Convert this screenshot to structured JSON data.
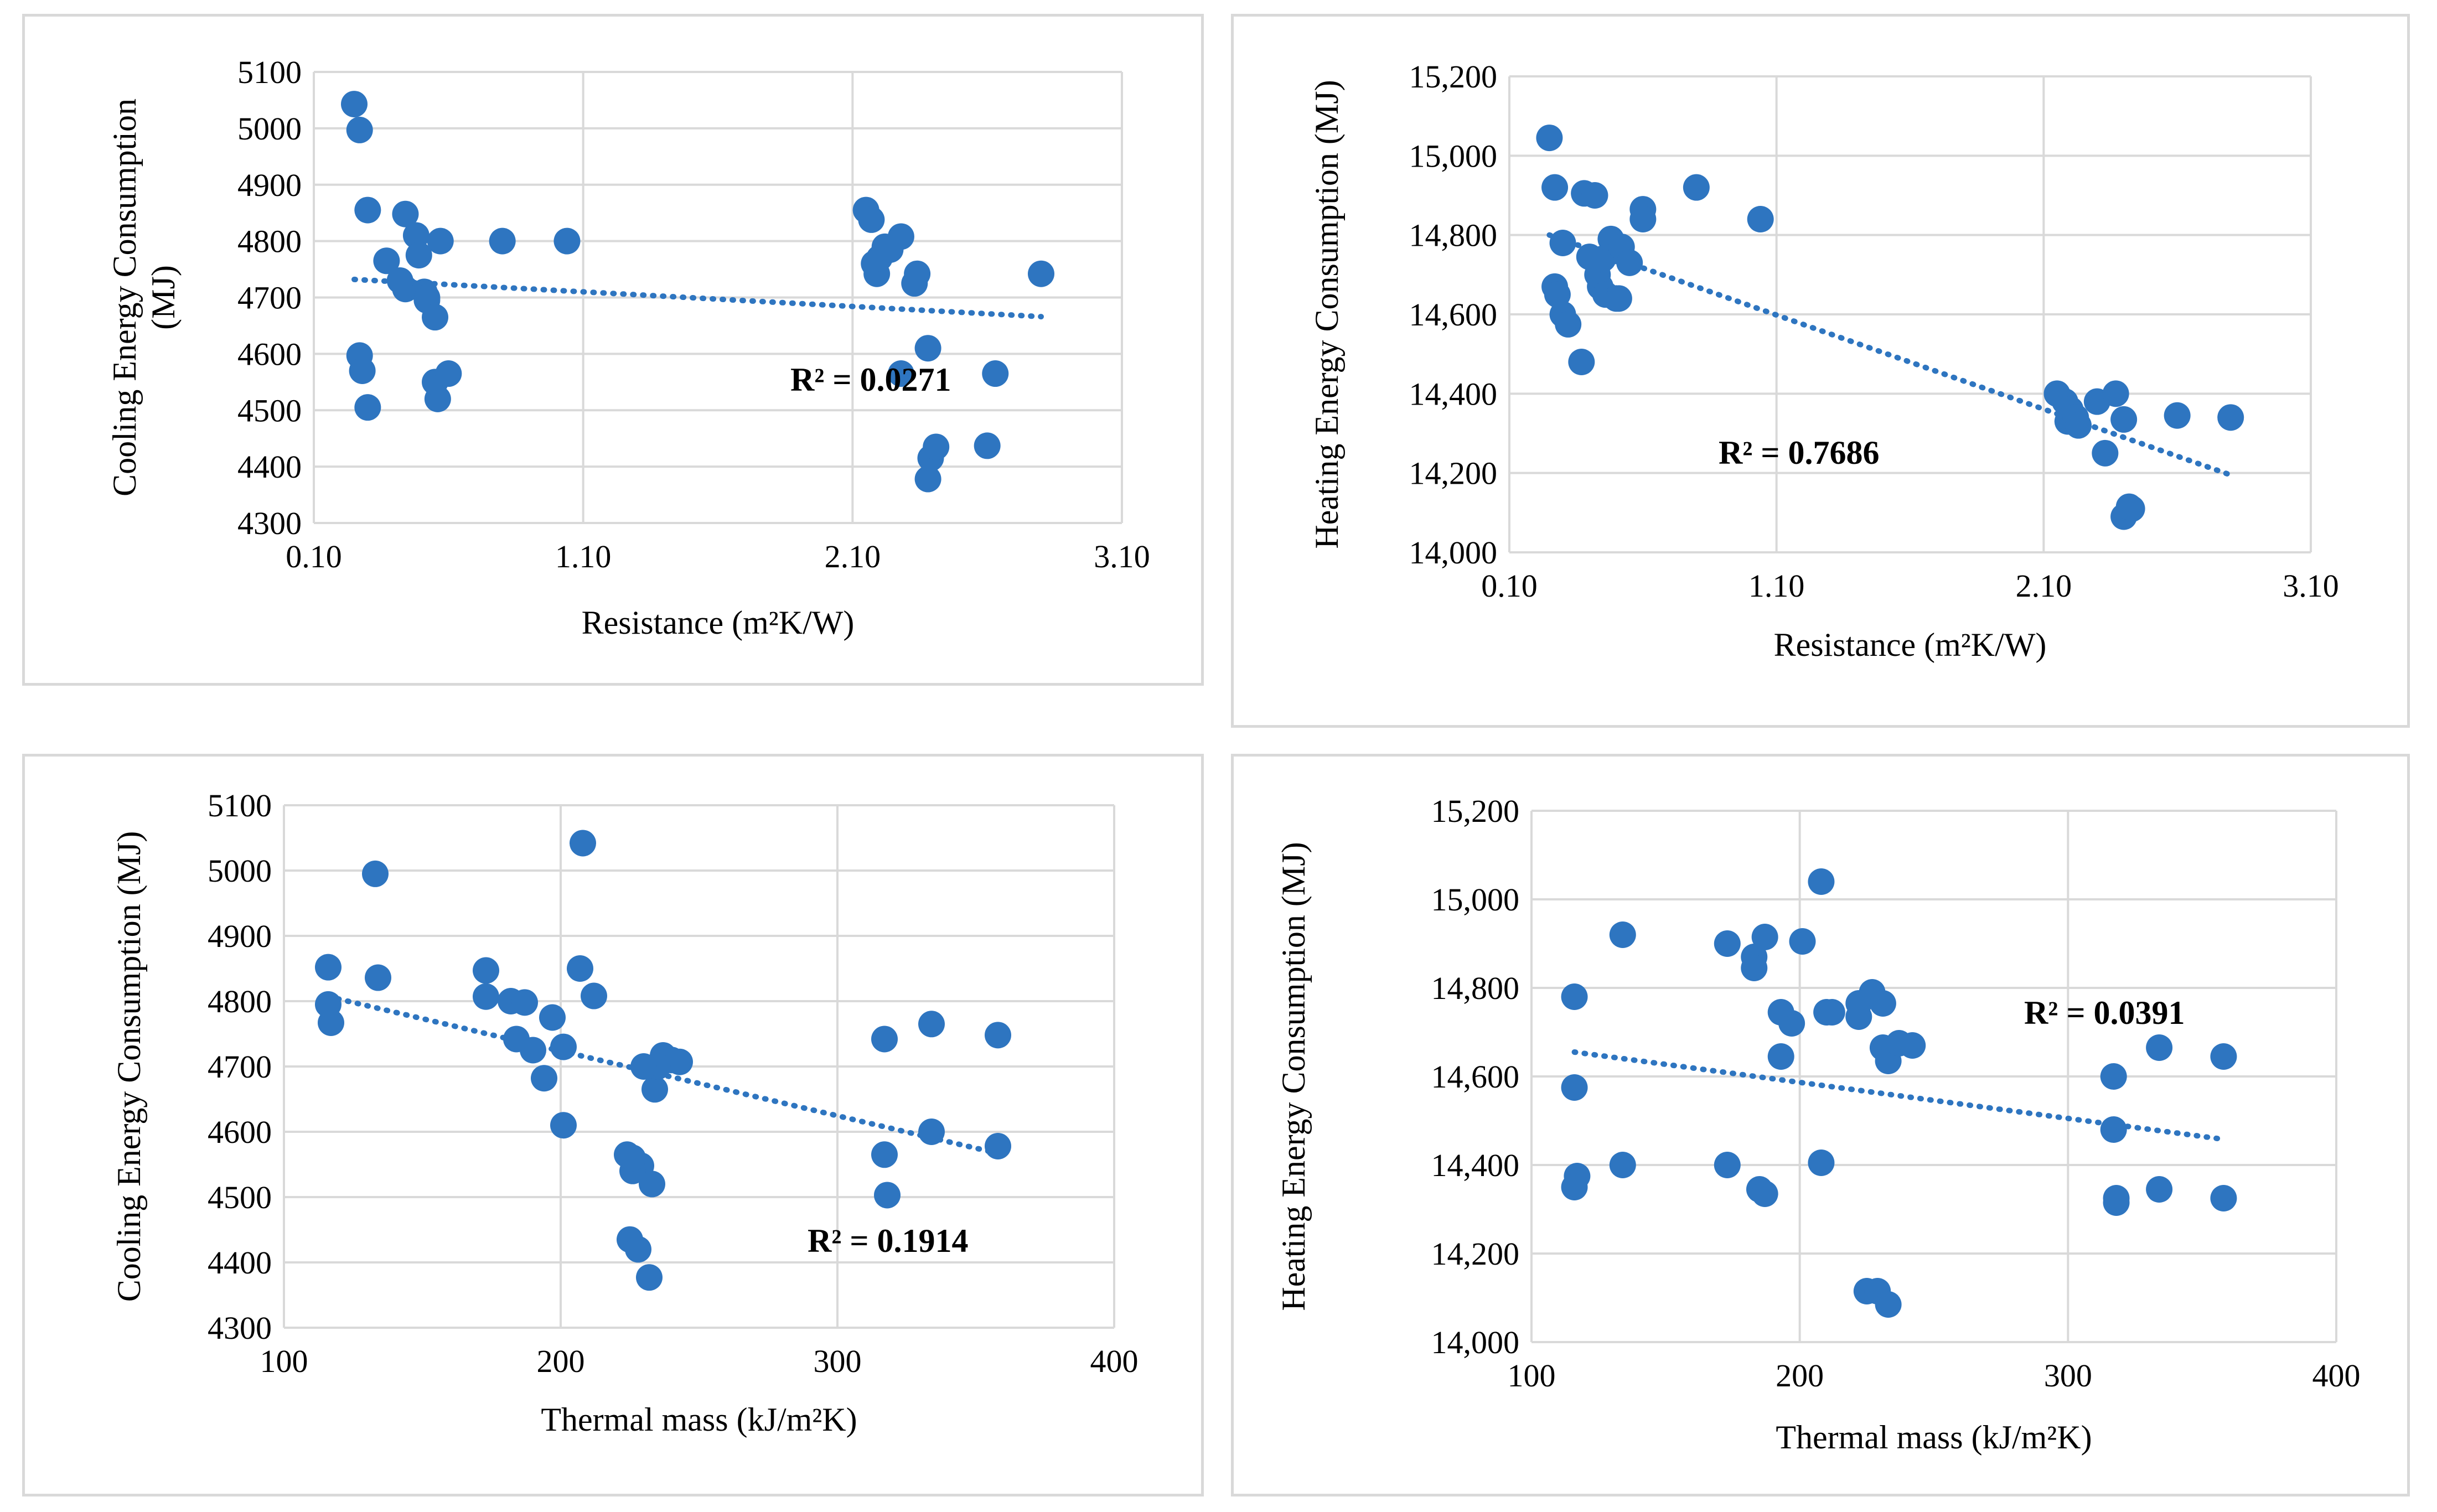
{
  "colors": {
    "marker": "#2e75c0",
    "trendline": "#2e75c0",
    "grid": "#d9d9d9",
    "text": "#000000"
  },
  "chart_data": [
    {
      "type": "scatter",
      "title": "",
      "xlabel": "Resistance (m²K/W)",
      "ylabel": "Cooling Energy Consumption (MJ)",
      "xlim": [
        0.1,
        3.1
      ],
      "ylim": [
        4300,
        5100
      ],
      "xticks": [
        "0.10",
        "1.10",
        "2.10",
        "3.10"
      ],
      "yticks": [
        "4300",
        "4400",
        "4500",
        "4600",
        "4700",
        "4800",
        "4900",
        "5000",
        "5100"
      ],
      "trendline": {
        "type": "linear",
        "x": [
          0.25,
          2.8
        ],
        "y": [
          4732,
          4666
        ]
      },
      "annotation": "R² = 0.0271",
      "x": [
        0.25,
        0.27,
        0.3,
        0.27,
        0.28,
        0.3,
        0.37,
        0.42,
        0.44,
        0.48,
        0.44,
        0.49,
        0.51,
        0.52,
        0.52,
        0.55,
        0.56,
        0.55,
        0.57,
        0.6,
        0.8,
        1.04,
        2.15,
        2.17,
        2.18,
        2.19,
        2.2,
        2.22,
        2.24,
        2.28,
        2.33,
        2.34,
        2.38,
        2.38,
        2.39,
        2.41,
        2.6,
        2.8,
        2.28,
        2.63
      ],
      "y": [
        5043,
        4997,
        4855,
        4597,
        4570,
        4505,
        4765,
        4730,
        4848,
        4810,
        4715,
        4775,
        4710,
        4700,
        4695,
        4665,
        4520,
        4550,
        4800,
        4565,
        4800,
        4800,
        4855,
        4838,
        4760,
        4742,
        4770,
        4790,
        4785,
        4808,
        4725,
        4742,
        4610,
        4378,
        4415,
        4435,
        4437,
        4742,
        4565,
        4565
      ]
    },
    {
      "type": "scatter",
      "title": "",
      "xlabel": "Resistance (m²K/W)",
      "ylabel": "Heating Energy Consumption (MJ)",
      "xlim": [
        0.1,
        3.1
      ],
      "ylim": [
        14000,
        15200
      ],
      "xticks": [
        "0.10",
        "1.10",
        "2.10",
        "3.10"
      ],
      "yticks": [
        "14,000",
        "14,200",
        "14,400",
        "14,600",
        "14,800",
        "15,000",
        "15,200"
      ],
      "trendline": {
        "type": "linear",
        "x": [
          0.25,
          2.8
        ],
        "y": [
          14800,
          14195
        ]
      },
      "annotation": "R² = 0.7686",
      "x": [
        0.25,
        0.27,
        0.27,
        0.28,
        0.3,
        0.3,
        0.32,
        0.37,
        0.38,
        0.4,
        0.42,
        0.43,
        0.44,
        0.45,
        0.46,
        0.48,
        0.5,
        0.5,
        0.51,
        0.52,
        0.55,
        0.6,
        0.6,
        0.8,
        1.04,
        2.15,
        2.18,
        2.19,
        2.2,
        2.22,
        2.23,
        2.3,
        2.33,
        2.37,
        2.4,
        2.4,
        2.43,
        2.42,
        2.6,
        2.8
      ],
      "y": [
        15045,
        14920,
        14670,
        14650,
        14600,
        14780,
        14575,
        14480,
        14905,
        14745,
        14900,
        14700,
        14670,
        14740,
        14650,
        14790,
        14640,
        14760,
        14640,
        14770,
        14730,
        14865,
        14840,
        14920,
        14840,
        14400,
        14380,
        14330,
        14360,
        14340,
        14320,
        14380,
        14250,
        14400,
        14335,
        14090,
        14110,
        14115,
        14345,
        14340
      ]
    },
    {
      "type": "scatter",
      "title": "",
      "xlabel": "Thermal mass (kJ/m²K)",
      "ylabel": "Cooling Energy Consumption (MJ)",
      "xlim": [
        100,
        400
      ],
      "ylim": [
        4300,
        5100
      ],
      "xticks": [
        "100",
        "200",
        "300",
        "400"
      ],
      "yticks": [
        "4300",
        "4400",
        "4500",
        "4600",
        "4700",
        "4800",
        "4900",
        "5000",
        "5100"
      ],
      "trendline": {
        "type": "linear",
        "x": [
          116,
          358
        ],
        "y": [
          4807,
          4567
        ]
      },
      "annotation": "R² = 0.1914",
      "x": [
        116,
        116,
        117,
        133,
        134,
        173,
        173,
        182,
        184,
        187,
        190,
        194,
        197,
        201,
        201,
        207,
        208,
        212,
        224,
        225,
        229,
        232,
        234,
        235,
        237,
        240,
        243,
        317,
        317,
        318,
        334,
        334,
        358,
        358,
        226,
        228,
        233,
        235,
        230,
        226
      ],
      "y": [
        4852,
        4795,
        4767,
        4995,
        4836,
        4847,
        4807,
        4800,
        4742,
        4798,
        4725,
        4682,
        4775,
        4610,
        4730,
        4850,
        5042,
        4808,
        4565,
        4435,
        4548,
        4377,
        4665,
        4700,
        4717,
        4710,
        4707,
        4742,
        4565,
        4503,
        4765,
        4600,
        4748,
        4578,
        4540,
        4420,
        4520,
        4700,
        4700,
        4560
      ]
    },
    {
      "type": "scatter",
      "title": "",
      "xlabel": "Thermal mass (kJ/m²K)",
      "ylabel": "Heating Energy Consumption (MJ)",
      "xlim": [
        100,
        400
      ],
      "ylim": [
        14000,
        15200
      ],
      "xticks": [
        "100",
        "200",
        "300",
        "400"
      ],
      "yticks": [
        "14,000",
        "14,200",
        "14,400",
        "14,600",
        "14,800",
        "15,000",
        "15,200"
      ],
      "trendline": {
        "type": "linear",
        "x": [
          116,
          358
        ],
        "y": [
          14655,
          14458
        ]
      },
      "annotation": "R² = 0.0391",
      "x": [
        116,
        116,
        117,
        116,
        134,
        134,
        173,
        173,
        183,
        183,
        185,
        187,
        187,
        193,
        193,
        197,
        201,
        208,
        208,
        210,
        212,
        222,
        222,
        225,
        227,
        231,
        231,
        233,
        237,
        242,
        317,
        317,
        318,
        318,
        334,
        334,
        358,
        358,
        229,
        233
      ],
      "y": [
        14780,
        14575,
        14375,
        14350,
        14920,
        14400,
        14900,
        14400,
        14870,
        14845,
        14345,
        14915,
        14335,
        14745,
        14645,
        14720,
        14905,
        15040,
        14405,
        14745,
        14745,
        14765,
        14735,
        14115,
        14790,
        14765,
        14665,
        14635,
        14675,
        14670,
        14600,
        14480,
        14325,
        14315,
        14665,
        14345,
        14645,
        14325,
        14115,
        14085
      ]
    }
  ]
}
